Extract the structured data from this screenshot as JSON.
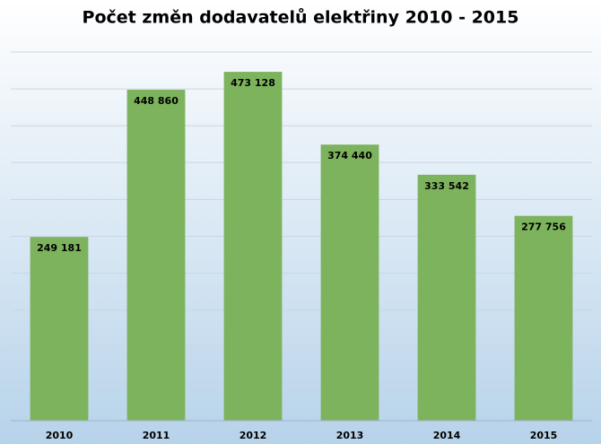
{
  "chart_data": {
    "type": "bar",
    "title": "Počet změn dodavatelů elektřiny 2010 - 2015",
    "categories": [
      "2010",
      "2011",
      "2012",
      "2013",
      "2014",
      "2015"
    ],
    "values": [
      249181,
      448860,
      473128,
      374440,
      333542,
      277756
    ],
    "value_labels": [
      "249 181",
      "448 860",
      "473 128",
      "374 440",
      "333 542",
      "277 756"
    ],
    "color": "#7db35c",
    "ylim": [
      0,
      500000
    ],
    "yticks": [
      0,
      50000,
      100000,
      150000,
      200000,
      250000,
      300000,
      350000,
      400000,
      450000,
      500000
    ],
    "grid": true
  }
}
